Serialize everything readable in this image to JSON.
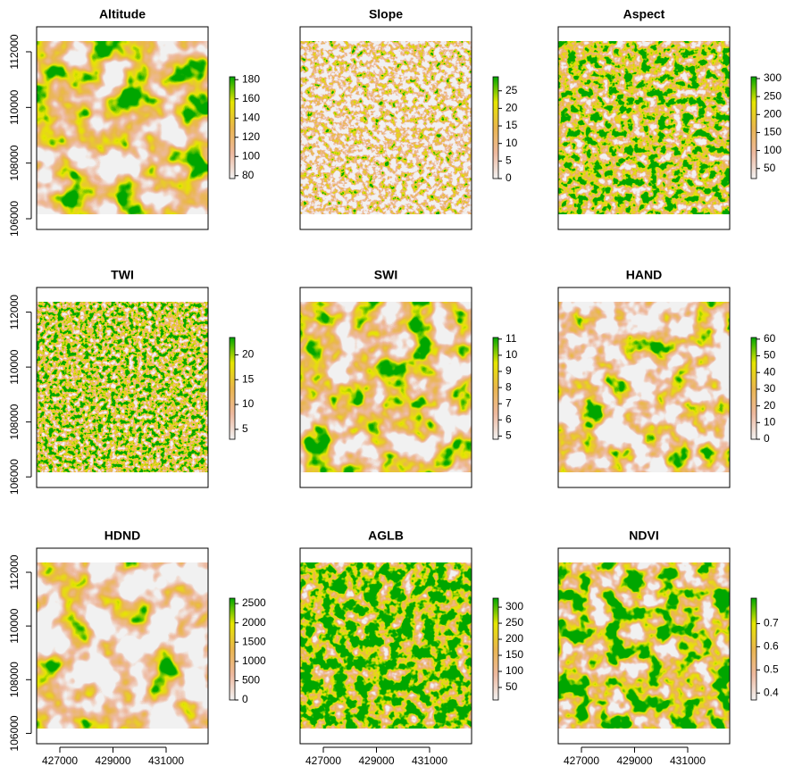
{
  "chart_data": [
    {
      "type": "raster",
      "title": "Altitude",
      "zlim": [
        77,
        183
      ],
      "zticks": [
        80,
        100,
        120,
        140,
        160,
        180
      ],
      "colors": [
        "#F2F2F2",
        "#EEB99F",
        "#EAB64E",
        "#E6E600",
        "#00A600"
      ],
      "xlim": [
        426126,
        432580
      ],
      "ylim": [
        105615,
        112898
      ],
      "yticks": [
        106000,
        108000,
        110000,
        112000
      ]
    },
    {
      "type": "raster",
      "title": "Slope",
      "zlim": [
        0,
        29
      ],
      "zticks": [
        0,
        5,
        10,
        15,
        20,
        25
      ],
      "colors": [
        "#F2F2F2",
        "#EEB99F",
        "#EAB64E",
        "#E6E600",
        "#00A600"
      ],
      "xlim": [
        426126,
        432580
      ],
      "ylim": [
        105615,
        112898
      ]
    },
    {
      "type": "raster",
      "title": "Aspect",
      "zlim": [
        22,
        305
      ],
      "zticks": [
        50,
        100,
        150,
        200,
        250,
        300
      ],
      "colors": [
        "#F2F2F2",
        "#EEB99F",
        "#EAB64E",
        "#E6E600",
        "#00A600"
      ],
      "xlim": [
        426126,
        432580
      ],
      "ylim": [
        105615,
        112898
      ]
    },
    {
      "type": "raster",
      "title": "TWI",
      "zlim": [
        3,
        23.5
      ],
      "zticks": [
        5,
        10,
        15,
        20
      ],
      "colors": [
        "#F2F2F2",
        "#EEB99F",
        "#EAB64E",
        "#E6E600",
        "#00A600"
      ],
      "xlim": [
        426126,
        432580
      ],
      "ylim": [
        105615,
        112898
      ],
      "yticks": [
        106000,
        108000,
        110000,
        112000
      ]
    },
    {
      "type": "raster",
      "title": "SWI",
      "zlim": [
        4.8,
        11.1
      ],
      "zticks": [
        5,
        6,
        7,
        8,
        9,
        10,
        11
      ],
      "colors": [
        "#F2F2F2",
        "#EEB99F",
        "#EAB64E",
        "#E6E600",
        "#00A600"
      ],
      "xlim": [
        426126,
        432580
      ],
      "ylim": [
        105615,
        112898
      ]
    },
    {
      "type": "raster",
      "title": "HAND",
      "zlim": [
        0,
        61
      ],
      "zticks": [
        0,
        10,
        20,
        30,
        40,
        50,
        60
      ],
      "colors": [
        "#F2F2F2",
        "#EEB99F",
        "#EAB64E",
        "#E6E600",
        "#00A600"
      ],
      "xlim": [
        426126,
        432580
      ],
      "ylim": [
        105615,
        112898
      ]
    },
    {
      "type": "raster",
      "title": "HDND",
      "zlim": [
        0,
        2640
      ],
      "zticks": [
        0,
        500,
        1000,
        1500,
        2000,
        2500
      ],
      "colors": [
        "#F2F2F2",
        "#EEB99F",
        "#EAB64E",
        "#E6E600",
        "#00A600"
      ],
      "xlim": [
        426126,
        432580
      ],
      "ylim": [
        105615,
        112898
      ],
      "xticks": [
        427000,
        429000,
        431000
      ],
      "yticks": [
        106000,
        108000,
        110000,
        112000
      ]
    },
    {
      "type": "raster",
      "title": "AGLB",
      "zlim": [
        11,
        328
      ],
      "zticks": [
        50,
        100,
        150,
        200,
        250,
        300
      ],
      "colors": [
        "#F2F2F2",
        "#EEB99F",
        "#EAB64E",
        "#E6E600",
        "#00A600"
      ],
      "xlim": [
        426126,
        432580
      ],
      "ylim": [
        105615,
        112898
      ],
      "xticks": [
        427000,
        429000,
        431000
      ]
    },
    {
      "type": "raster",
      "title": "NDVI",
      "zlim": [
        0.37,
        0.81
      ],
      "zticks": [
        0.4,
        0.5,
        0.6,
        0.7
      ],
      "colors": [
        "#F2F2F2",
        "#EEB99F",
        "#EAB64E",
        "#E6E600",
        "#00A600"
      ],
      "xlim": [
        426126,
        432580
      ],
      "ylim": [
        105615,
        112898
      ],
      "xticks": [
        427000,
        429000,
        431000
      ]
    }
  ]
}
